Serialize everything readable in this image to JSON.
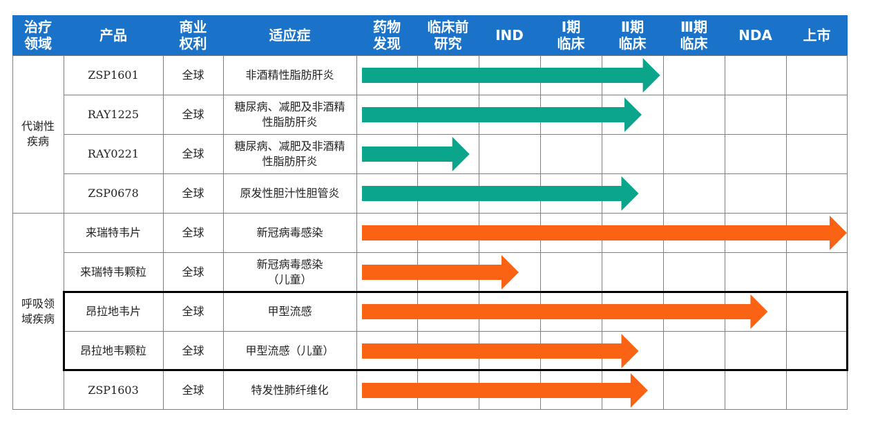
{
  "headers": [
    "治疗\n领域",
    "产品",
    "商业\n权利",
    "适应症",
    "药物\n发现",
    "临床前\n研究",
    "IND",
    "Ⅰ期\n临床",
    "Ⅱ期\n临床",
    "Ⅲ期\n临床",
    "NDA",
    "上市"
  ],
  "areas": [
    {
      "label": "代谢性\n疾病",
      "rows": 4
    },
    {
      "label": "呼吸领\n域疾病",
      "rows": 5
    }
  ],
  "rows": [
    {
      "product": "ZSP1601",
      "rights": "全球",
      "indication": "非酒精性脂肪肝炎",
      "progress": 4.85,
      "color": "#0aa58a"
    },
    {
      "product": "RAY1225",
      "rights": "全球",
      "indication": "糖尿病、减肥及非酒精\n性脂肪肝炎",
      "progress": 4.55,
      "color": "#0aa58a"
    },
    {
      "product": "RAY0221",
      "rights": "全球",
      "indication": "糖尿病、减肥及非酒精\n性脂肪肝炎",
      "progress": 1.75,
      "color": "#0aa58a"
    },
    {
      "product": "ZSP0678",
      "rights": "全球",
      "indication": "原发性胆汁性胆管炎",
      "progress": 4.5,
      "color": "#0aa58a"
    },
    {
      "product": "来瑞特韦片",
      "rights": "全球",
      "indication": "新冠病毒感染",
      "progress": 7.95,
      "color": "#fb6314"
    },
    {
      "product": "来瑞特韦颗粒",
      "rights": "全球",
      "indication": "新冠病毒感染\n（儿童）",
      "progress": 2.55,
      "color": "#fb6314"
    },
    {
      "product": "昂拉地韦片",
      "rights": "全球",
      "indication": "甲型流感",
      "progress": 6.6,
      "color": "#fb6314"
    },
    {
      "product": "昂拉地韦颗粒",
      "rights": "全球",
      "indication": "甲型流感（儿童）",
      "progress": 4.5,
      "color": "#fb6314"
    },
    {
      "product": "ZSP1603",
      "rights": "全球",
      "indication": "特发性肺纤维化",
      "progress": 4.65,
      "color": "#fb6314"
    }
  ]
}
